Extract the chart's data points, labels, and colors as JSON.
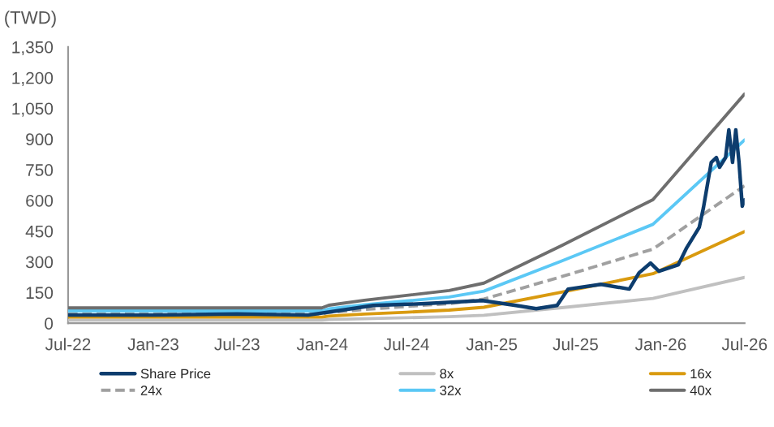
{
  "chart_data": {
    "type": "line",
    "ylabel": "(TWD)",
    "x": [
      "2022-07",
      "2023-12-31",
      "2024-01-15",
      "2024-04",
      "2024-07",
      "2024-10",
      "2024-12-15",
      "2025-06",
      "2025-12-15",
      "2026-07"
    ],
    "series": [
      {
        "name": "Share Price",
        "color": "#0d3d6e",
        "x": [
          "2022-07",
          "2023-01",
          "2023-07",
          "2023-12",
          "2024-02",
          "2024-04-20",
          "2024-08",
          "2024-12-12",
          "2025-02-22",
          "2025-04-07",
          "2025-05-22",
          "2025-06-15",
          "2025-08-25",
          "2025-10-25",
          "2025-11-15",
          "2025-12-10",
          "2025-12-28",
          "2026-02-08",
          "2026-02-25",
          "2026-03-25",
          "2026-04-03",
          "2026-04-20",
          "2026-05-01",
          "2026-05-08",
          "2026-05-21",
          "2026-05-28",
          "2026-06-05",
          "2026-06-12",
          "2026-06-19",
          "2026-06-26",
          "2026-07-01"
        ],
        "values": [
          40,
          40,
          45,
          40,
          60,
          87,
          95,
          111,
          87,
          71,
          87,
          167,
          190,
          167,
          246,
          294,
          254,
          286,
          365,
          468,
          563,
          786,
          810,
          762,
          810,
          945,
          786,
          945,
          786,
          572,
          603
        ]
      },
      {
        "name": "8x",
        "color": "#c0c0c0",
        "values": [
          15,
          15,
          18,
          22,
          27,
          32,
          39,
          76,
          121,
          224
        ]
      },
      {
        "name": "16x",
        "color": "#d99a0f",
        "values": [
          30,
          30,
          35,
          45,
          54,
          64,
          78,
          152,
          242,
          448
        ]
      },
      {
        "name": "24x",
        "color": "#a0a0a0",
        "line_style": "dashed",
        "values": [
          45,
          45,
          53,
          67,
          82,
          96,
          118,
          228,
          362,
          672
        ]
      },
      {
        "name": "32x",
        "color": "#5bc8f5",
        "values": [
          60,
          60,
          70,
          90,
          109,
          128,
          157,
          304,
          483,
          896
        ]
      },
      {
        "name": "40x",
        "color": "#6e6e6e",
        "values": [
          75,
          75,
          88,
          112,
          136,
          160,
          196,
          380,
          604,
          1120
        ]
      }
    ],
    "xlim": [
      "2022-07",
      "2026-07"
    ],
    "xticks": [
      {
        "value": "2022-07",
        "label": "Jul-22"
      },
      {
        "value": "2023-01",
        "label": "Jan-23"
      },
      {
        "value": "2023-07",
        "label": "Jul-23"
      },
      {
        "value": "2024-01",
        "label": "Jan-24"
      },
      {
        "value": "2024-07",
        "label": "Jul-24"
      },
      {
        "value": "2025-01",
        "label": "Jan-25"
      },
      {
        "value": "2025-07",
        "label": "Jul-25"
      },
      {
        "value": "2026-01",
        "label": "Jan-26"
      },
      {
        "value": "2026-07",
        "label": "Jul-26"
      }
    ],
    "ylim": [
      0,
      1350
    ],
    "yticks": [
      {
        "value": 0,
        "label": "0"
      },
      {
        "value": 150,
        "label": "150"
      },
      {
        "value": 300,
        "label": "300"
      },
      {
        "value": 450,
        "label": "450"
      },
      {
        "value": 600,
        "label": "600"
      },
      {
        "value": 750,
        "label": "750"
      },
      {
        "value": 900,
        "label": "900"
      },
      {
        "value": 1050,
        "label": "1,050"
      },
      {
        "value": 1200,
        "label": "1,200"
      },
      {
        "value": 1350,
        "label": "1,350"
      }
    ],
    "grid": false,
    "legend": "bottom"
  }
}
